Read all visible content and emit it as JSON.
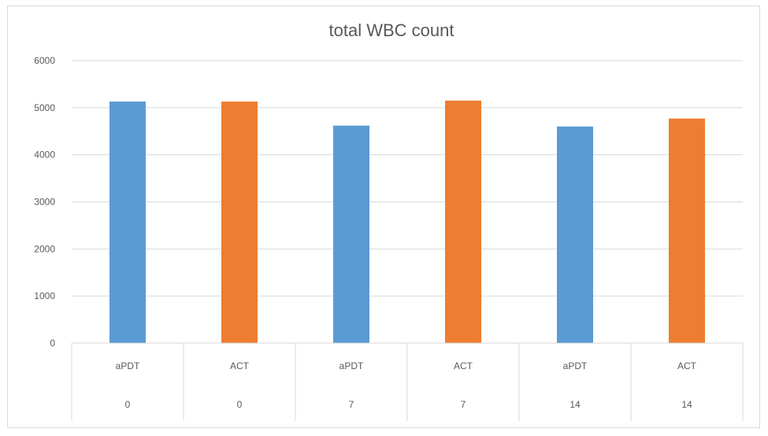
{
  "chart_data": {
    "type": "bar",
    "title": "total WBC count",
    "xlabel": "",
    "ylabel": "",
    "ylim": [
      0,
      6000
    ],
    "yticks": [
      0,
      1000,
      2000,
      3000,
      4000,
      5000,
      6000
    ],
    "categories": [
      {
        "group": "aPDT",
        "day": "0"
      },
      {
        "group": "ACT",
        "day": "0"
      },
      {
        "group": "aPDT",
        "day": "7"
      },
      {
        "group": "ACT",
        "day": "7"
      },
      {
        "group": "aPDT",
        "day": "14"
      },
      {
        "group": "ACT",
        "day": "14"
      }
    ],
    "values": [
      5130,
      5130,
      4620,
      5150,
      4600,
      4770
    ],
    "grid": true,
    "legend": "none",
    "colors": {
      "aPDT": "#5b9bd5",
      "ACT": "#ed7d31",
      "grid": "#d9d9d9",
      "text": "#595959"
    }
  }
}
